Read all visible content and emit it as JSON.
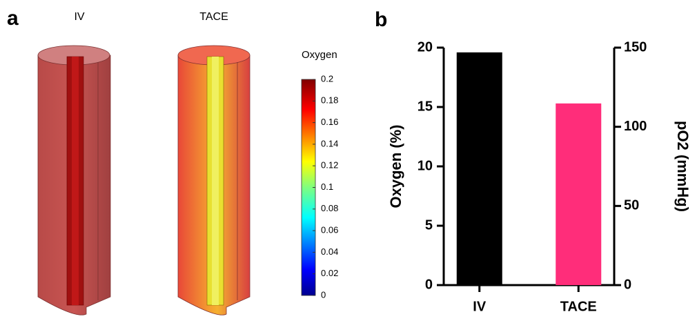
{
  "panel_labels": [
    "a",
    "b"
  ],
  "renders": [
    "IV",
    "TACE"
  ],
  "chart_data": [
    {
      "type": "colorbar",
      "title": "Oxygen",
      "ylim": [
        0,
        0.2
      ],
      "yticks": [
        0,
        0.02,
        0.04,
        0.06,
        0.08,
        0.1,
        0.12,
        0.14,
        0.16,
        0.18,
        0.2
      ]
    },
    {
      "type": "bar",
      "categories": [
        "IV",
        "TACE"
      ],
      "values": [
        19.6,
        15.3
      ],
      "colors": [
        "#000000",
        "#ff2d7a"
      ],
      "ylabel": "Oxygen (%)",
      "y2label": "pO2 (mmHg)",
      "ylim": [
        0,
        20
      ],
      "yticks": [
        0,
        5,
        10,
        15,
        20
      ],
      "y2lim": [
        0,
        150
      ],
      "y2ticks": [
        0,
        50,
        100,
        150
      ]
    }
  ]
}
